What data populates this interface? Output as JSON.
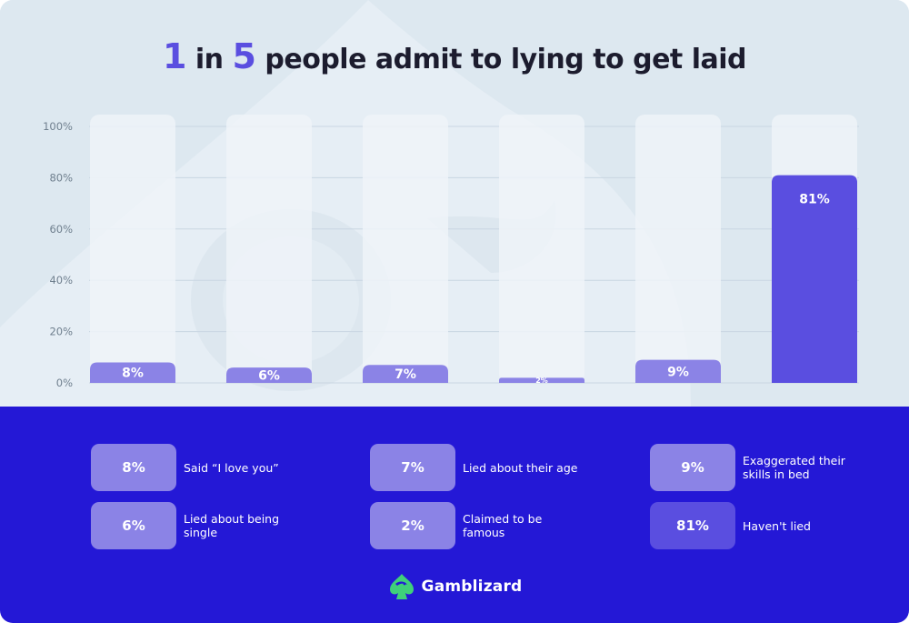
{
  "title": {
    "num1": "1",
    "mid": "in",
    "num2": "5",
    "rest": "people admit to lying to get laid"
  },
  "colors": {
    "accent": "#5a4ee0",
    "bar_light": "#8b83e6",
    "track": "#eef3f8",
    "bottom_bg": "#2418d6",
    "top_bg": "#dde8f0"
  },
  "chart_data": {
    "type": "bar",
    "categories": [
      "Said “I love you”",
      "Lied about being single",
      "Lied about their age",
      "Claimed to be famous",
      "Exaggerated their skills in bed",
      "Haven't lied"
    ],
    "values": [
      8,
      6,
      7,
      2,
      9,
      81
    ],
    "data_labels": [
      "8%",
      "6%",
      "7%",
      "2%",
      "9%",
      "81%"
    ],
    "y_ticks": [
      "0%",
      "20%",
      "40%",
      "60%",
      "80%",
      "100%"
    ],
    "ylim": [
      0,
      100
    ],
    "grid": true
  },
  "legend": [
    {
      "value": "8%",
      "label": "Said “I love you”"
    },
    {
      "value": "7%",
      "label": "Lied about their age"
    },
    {
      "value": "9%",
      "label": "Exaggerated their skills in bed"
    },
    {
      "value": "6%",
      "label": "Lied about being single"
    },
    {
      "value": "2%",
      "label": "Claimed to be famous"
    },
    {
      "value": "81%",
      "label": "Haven't lied"
    }
  ],
  "brand": {
    "name": "Gamblizard",
    "icon": "lizard-spade-icon"
  }
}
